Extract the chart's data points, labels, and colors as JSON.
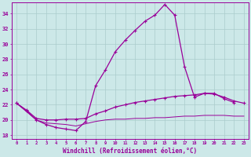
{
  "hours": [
    0,
    1,
    2,
    3,
    4,
    5,
    6,
    7,
    8,
    9,
    10,
    11,
    12,
    13,
    14,
    15,
    16,
    17,
    18,
    19,
    20,
    21,
    22,
    23
  ],
  "curve_top": [
    22.2,
    21.2,
    20.0,
    19.4,
    19.0,
    18.8,
    18.6,
    19.8,
    24.5,
    26.6,
    29.0,
    30.5,
    31.8,
    33.0,
    33.8,
    35.2,
    33.8,
    27.0,
    23.0,
    23.5,
    23.5,
    22.8,
    22.3,
    null
  ],
  "curve_mid": [
    22.2,
    21.3,
    20.2,
    20.0,
    20.0,
    20.1,
    20.1,
    20.2,
    20.8,
    21.2,
    21.7,
    22.0,
    22.3,
    22.5,
    22.7,
    22.9,
    23.1,
    23.2,
    23.3,
    23.5,
    23.4,
    23.0,
    22.5,
    22.2
  ],
  "curve_bot": [
    22.2,
    21.1,
    20.0,
    19.6,
    19.5,
    19.4,
    19.2,
    19.5,
    19.8,
    20.0,
    20.1,
    20.1,
    20.2,
    20.2,
    20.3,
    20.3,
    20.4,
    20.5,
    20.5,
    20.6,
    20.6,
    20.6,
    20.5,
    20.5
  ],
  "ylim": [
    17.5,
    35.5
  ],
  "yticks": [
    18,
    20,
    22,
    24,
    26,
    28,
    30,
    32,
    34
  ],
  "xlim": [
    -0.5,
    23.5
  ],
  "bg_color": "#cce8e8",
  "line_color": "#990099",
  "grid_color": "#aacccc",
  "xlabel": "Windchill (Refroidissement éolien,°C)"
}
